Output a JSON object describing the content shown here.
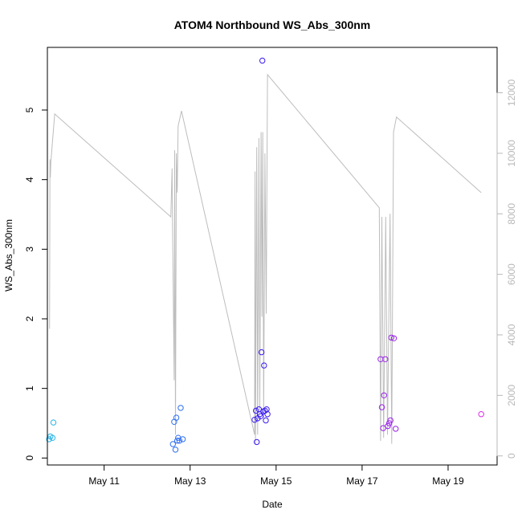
{
  "chart_data": {
    "type": "scatter",
    "title": "ATOM4 Northbound WS_Abs_300nm",
    "xlabel": "Date",
    "ylabel": "WS_Abs_300nm",
    "xlim": [
      9.68,
      20.14
    ],
    "ylim": [
      -0.1,
      5.9
    ],
    "yticks": [
      0,
      1,
      2,
      3,
      4,
      5
    ],
    "xticks": [
      {
        "value": 11,
        "label": "May 11"
      },
      {
        "value": 13,
        "label": "May 13"
      },
      {
        "value": 15,
        "label": "May 15"
      },
      {
        "value": 17,
        "label": "May 17"
      },
      {
        "value": 19,
        "label": "May 19"
      }
    ],
    "y2lim": [
      -300,
      13500
    ],
    "y2ticks": [
      0,
      2000,
      4000,
      6000,
      8000,
      10000,
      12000
    ],
    "y2_color": "#b8b8b8",
    "series": [
      {
        "name": "WS_Abs_300nm",
        "kind": "points",
        "points": [
          {
            "x": 9.72,
            "y": 0.27,
            "color": "#29b6e8"
          },
          {
            "x": 9.75,
            "y": 0.31,
            "color": "#29b6e8"
          },
          {
            "x": 9.8,
            "y": 0.29,
            "color": "#29b6e8"
          },
          {
            "x": 9.82,
            "y": 0.51,
            "color": "#29b6e8"
          },
          {
            "x": 12.6,
            "y": 0.2,
            "color": "#2f6ff0"
          },
          {
            "x": 12.63,
            "y": 0.52,
            "color": "#2f6ff0"
          },
          {
            "x": 12.66,
            "y": 0.12,
            "color": "#2f6ff0"
          },
          {
            "x": 12.68,
            "y": 0.58,
            "color": "#2f6ff0"
          },
          {
            "x": 12.7,
            "y": 0.25,
            "color": "#2f6ff0"
          },
          {
            "x": 12.72,
            "y": 0.29,
            "color": "#2f6ff0"
          },
          {
            "x": 12.75,
            "y": 0.25,
            "color": "#2f6ff0"
          },
          {
            "x": 12.78,
            "y": 0.72,
            "color": "#2f6ff0"
          },
          {
            "x": 12.83,
            "y": 0.27,
            "color": "#2f6ff0"
          },
          {
            "x": 14.5,
            "y": 0.55,
            "color": "#3a1cf0"
          },
          {
            "x": 14.53,
            "y": 0.68,
            "color": "#3a1cf0"
          },
          {
            "x": 14.55,
            "y": 0.23,
            "color": "#3a1cf0"
          },
          {
            "x": 14.57,
            "y": 0.57,
            "color": "#3a1cf0"
          },
          {
            "x": 14.6,
            "y": 0.7,
            "color": "#3a1cf0"
          },
          {
            "x": 14.62,
            "y": 0.63,
            "color": "#3a1cf0"
          },
          {
            "x": 14.64,
            "y": 0.6,
            "color": "#3a1cf0"
          },
          {
            "x": 14.66,
            "y": 1.52,
            "color": "#3a1cf0"
          },
          {
            "x": 14.68,
            "y": 5.71,
            "color": "#3a1cf0"
          },
          {
            "x": 14.7,
            "y": 0.67,
            "color": "#3a1cf0"
          },
          {
            "x": 14.72,
            "y": 1.33,
            "color": "#3a1cf0"
          },
          {
            "x": 14.74,
            "y": 0.68,
            "color": "#3a1cf0"
          },
          {
            "x": 14.76,
            "y": 0.54,
            "color": "#3a1cf0"
          },
          {
            "x": 14.78,
            "y": 0.7,
            "color": "#3a1cf0"
          },
          {
            "x": 14.8,
            "y": 0.63,
            "color": "#3a1cf0"
          },
          {
            "x": 17.43,
            "y": 1.42,
            "color": "#9922e8"
          },
          {
            "x": 17.46,
            "y": 0.73,
            "color": "#9922e8"
          },
          {
            "x": 17.49,
            "y": 0.43,
            "color": "#9922e8"
          },
          {
            "x": 17.51,
            "y": 0.9,
            "color": "#9922e8"
          },
          {
            "x": 17.54,
            "y": 1.42,
            "color": "#9922e8"
          },
          {
            "x": 17.6,
            "y": 0.46,
            "color": "#9922e8"
          },
          {
            "x": 17.63,
            "y": 0.5,
            "color": "#9922e8"
          },
          {
            "x": 17.66,
            "y": 0.54,
            "color": "#9922e8"
          },
          {
            "x": 17.68,
            "y": 1.73,
            "color": "#9922e8"
          },
          {
            "x": 17.74,
            "y": 1.72,
            "color": "#9922e8"
          },
          {
            "x": 17.78,
            "y": 0.42,
            "color": "#9922e8"
          },
          {
            "x": 19.77,
            "y": 0.63,
            "color": "#d92ae6"
          }
        ]
      },
      {
        "name": "secondary-axis-line",
        "kind": "line",
        "axis": "right",
        "color": "#bdbdbd",
        "points": [
          [
            9.73,
            4200
          ],
          [
            9.74,
            9800
          ],
          [
            9.75,
            9200
          ],
          [
            9.76,
            9700
          ],
          [
            9.85,
            11300
          ],
          [
            12.55,
            7900
          ],
          [
            12.58,
            9500
          ],
          [
            12.59,
            7700
          ],
          [
            12.63,
            2500
          ],
          [
            12.64,
            10100
          ],
          [
            12.66,
            700
          ],
          [
            12.68,
            10000
          ],
          [
            12.7,
            8700
          ],
          [
            12.72,
            10900
          ],
          [
            12.8,
            11400
          ],
          [
            14.5,
            700
          ],
          [
            14.51,
            9400
          ],
          [
            14.52,
            400
          ],
          [
            14.55,
            10200
          ],
          [
            14.57,
            700
          ],
          [
            14.6,
            10500
          ],
          [
            14.62,
            1500
          ],
          [
            14.65,
            10700
          ],
          [
            14.67,
            4600
          ],
          [
            14.69,
            10700
          ],
          [
            14.71,
            1200
          ],
          [
            14.74,
            10000
          ],
          [
            14.77,
            4700
          ],
          [
            14.8,
            12600
          ],
          [
            17.4,
            8200
          ],
          [
            17.43,
            500
          ],
          [
            17.46,
            7900
          ],
          [
            17.5,
            600
          ],
          [
            17.55,
            7900
          ],
          [
            17.59,
            700
          ],
          [
            17.65,
            8000
          ],
          [
            17.69,
            400
          ],
          [
            17.73,
            10700
          ],
          [
            17.8,
            11200
          ],
          [
            19.77,
            8700
          ]
        ]
      }
    ]
  }
}
